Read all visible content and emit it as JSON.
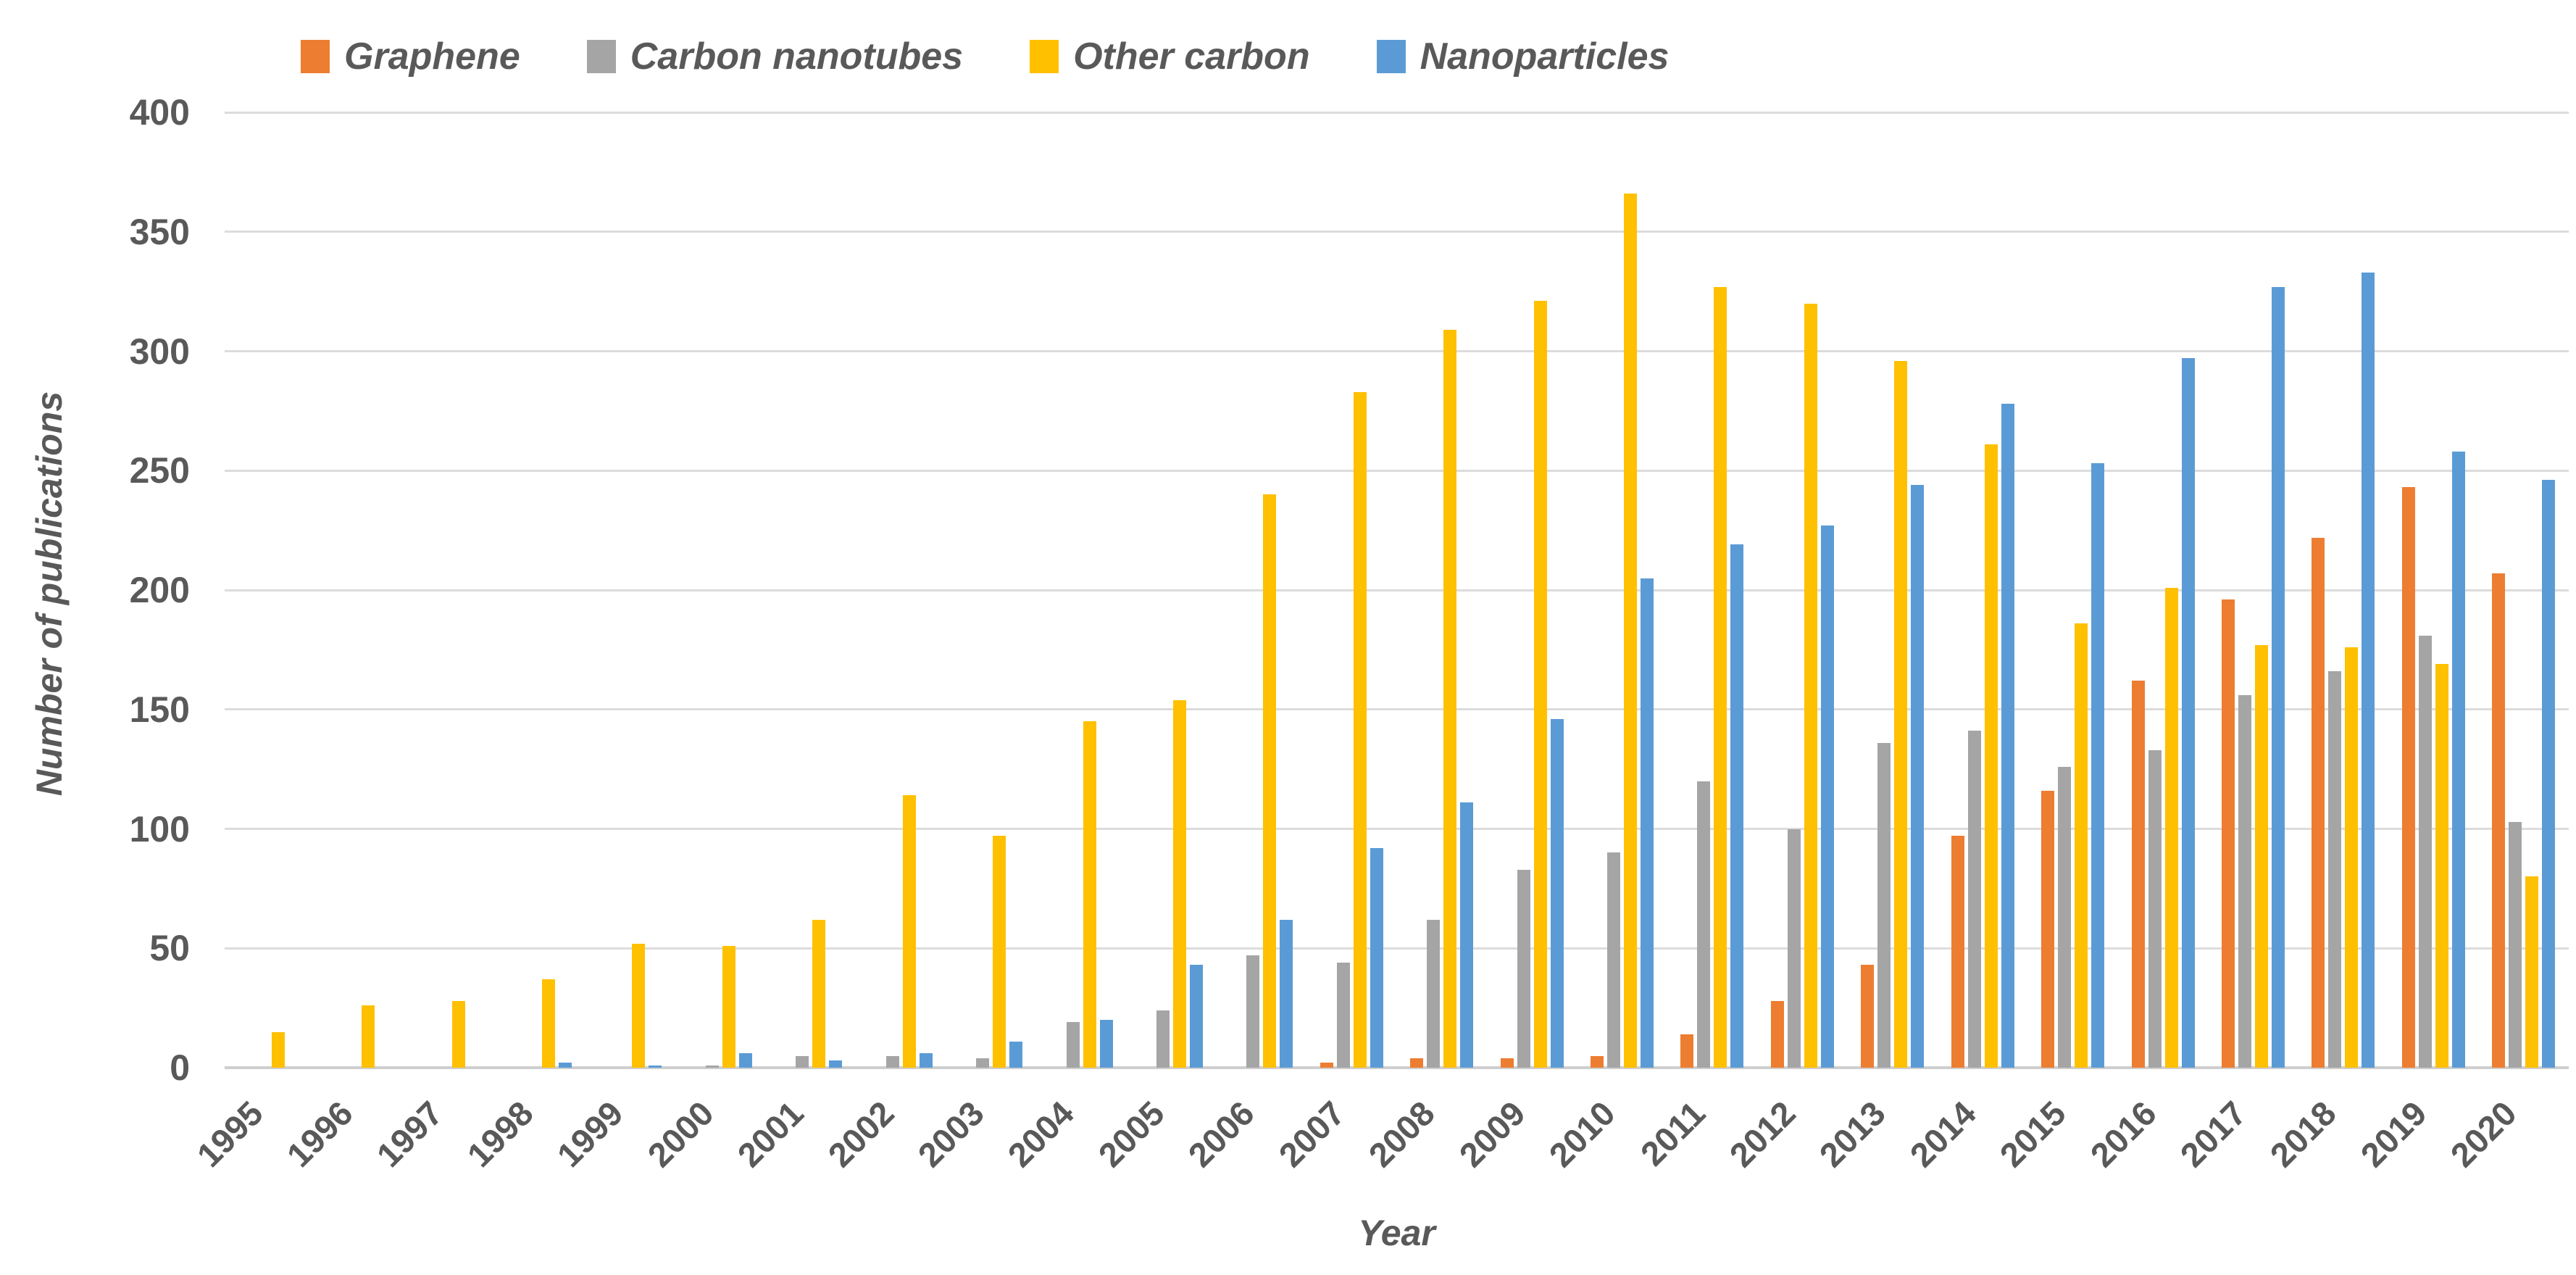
{
  "chart_data": {
    "type": "bar",
    "title": "",
    "categories": [
      "1995",
      "1996",
      "1997",
      "1998",
      "1999",
      "2000",
      "2001",
      "2002",
      "2003",
      "2004",
      "2005",
      "2006",
      "2007",
      "2008",
      "2009",
      "2010",
      "2011",
      "2012",
      "2013",
      "2014",
      "2015",
      "2016",
      "2017",
      "2018",
      "2019",
      "2020"
    ],
    "series": [
      {
        "name": "Graphene",
        "color": "#ED7D31",
        "values": [
          0,
          0,
          0,
          0,
          0,
          0,
          0,
          0,
          0,
          0,
          0,
          0,
          2,
          4,
          4,
          5,
          14,
          28,
          43,
          97,
          116,
          162,
          196,
          222,
          243,
          207
        ]
      },
      {
        "name": "Carbon nanotubes",
        "color": "#A5A5A5",
        "values": [
          0,
          0,
          0,
          0,
          0,
          1,
          5,
          5,
          4,
          19,
          24,
          47,
          44,
          62,
          83,
          90,
          120,
          100,
          136,
          141,
          126,
          133,
          156,
          166,
          181,
          103
        ]
      },
      {
        "name": "Other carbon",
        "color": "#FFC000",
        "values": [
          15,
          26,
          28,
          37,
          52,
          51,
          62,
          114,
          97,
          145,
          154,
          240,
          283,
          309,
          321,
          366,
          327,
          320,
          296,
          261,
          186,
          201,
          177,
          176,
          169,
          80
        ]
      },
      {
        "name": "Nanoparticles",
        "color": "#5B9BD5",
        "values": [
          0,
          0,
          0,
          2,
          1,
          6,
          3,
          6,
          11,
          20,
          43,
          62,
          92,
          111,
          146,
          205,
          219,
          227,
          244,
          278,
          253,
          297,
          327,
          333,
          258,
          246
        ]
      }
    ],
    "xlabel": "Year",
    "ylabel": "Number of publications",
    "ylim": [
      0,
      400
    ],
    "yticks": [
      0,
      50,
      100,
      150,
      200,
      250,
      300,
      350,
      400
    ],
    "grid": true,
    "legend_position": "top"
  },
  "style": {
    "text_color": "#595959",
    "gridline_color": "#dcdcdc",
    "baseline_color": "#cfcfcf"
  }
}
